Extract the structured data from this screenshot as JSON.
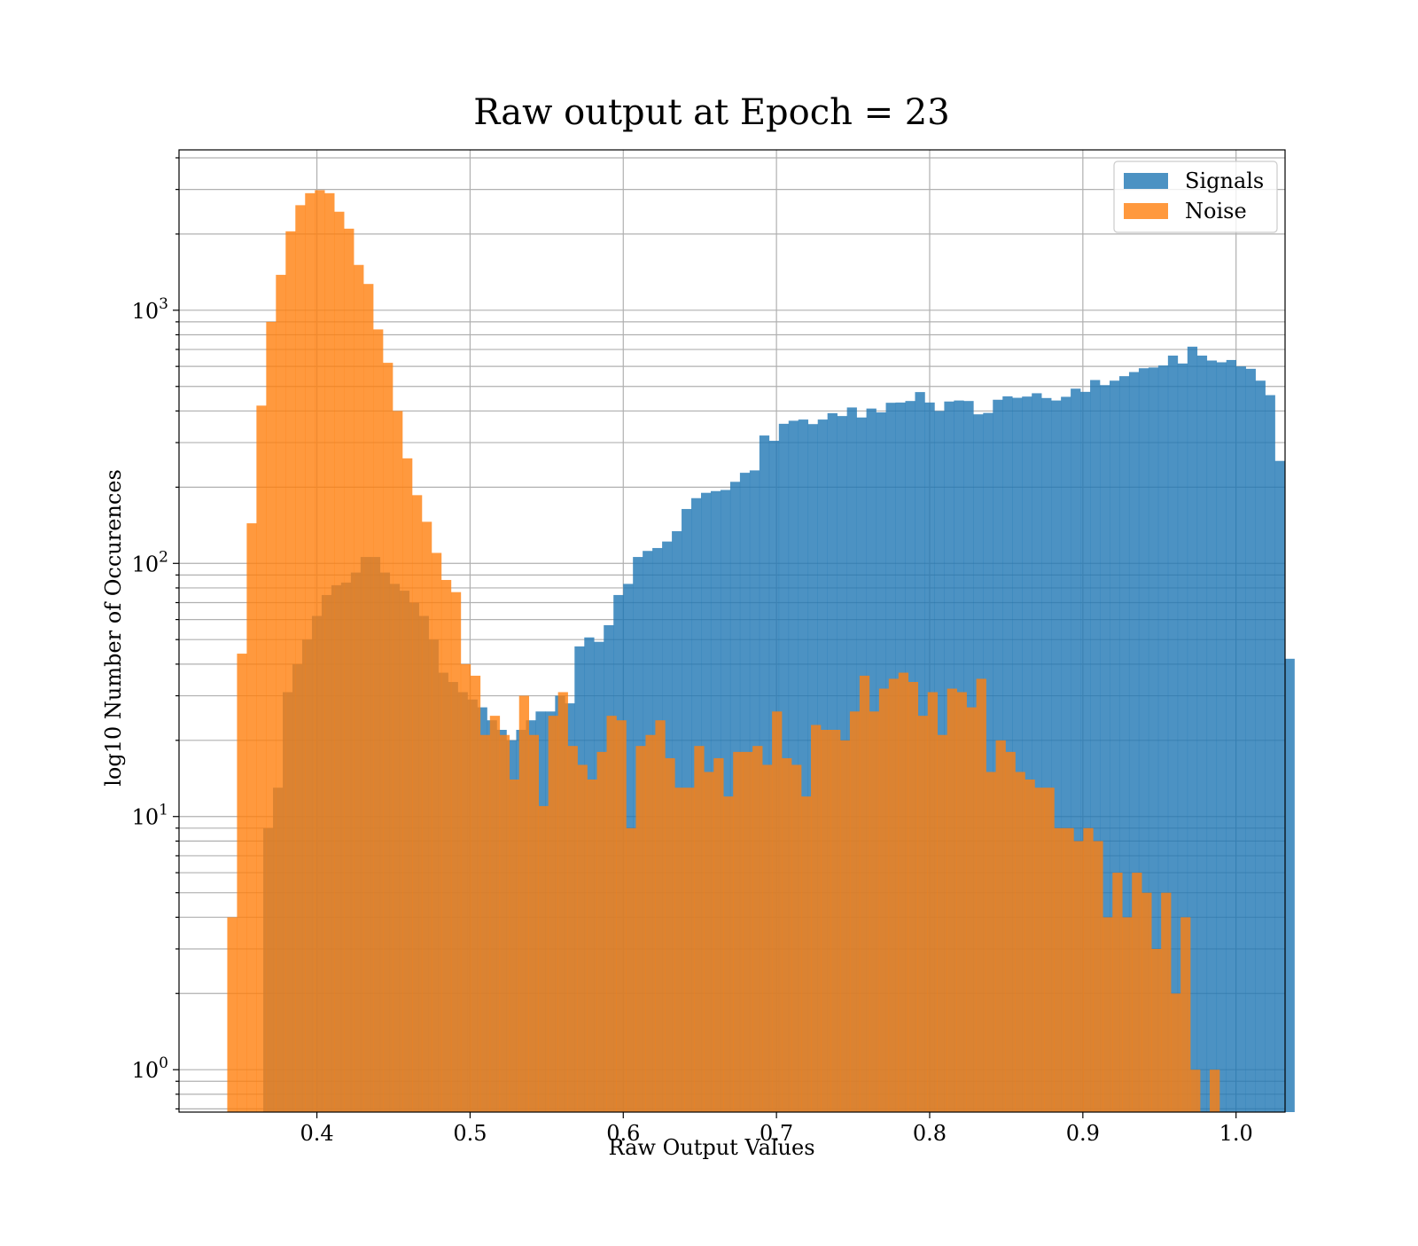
{
  "chart_data": {
    "type": "bar",
    "title": "Raw output at Epoch = 23",
    "xlabel": "Raw Output Values",
    "ylabel": "log10 Number of Occurences",
    "yscale": "log",
    "xlim": [
      0.31,
      1.032
    ],
    "ylim": [
      0.68,
      4300
    ],
    "grid": true,
    "legend_position": "top-right",
    "x_ticks": [
      0.4,
      0.5,
      0.6,
      0.7,
      0.8,
      0.9,
      1.0
    ],
    "x_tick_labels": [
      "0.4",
      "0.5",
      "0.6",
      "0.7",
      "0.8",
      "0.9",
      "1.0"
    ],
    "y_ticks": [
      {
        "base": "10",
        "exp": "0",
        "value": 1
      },
      {
        "base": "10",
        "exp": "1",
        "value": 10
      },
      {
        "base": "10",
        "exp": "2",
        "value": 100
      },
      {
        "base": "10",
        "exp": "3",
        "value": 1000
      }
    ],
    "series": [
      {
        "name": "Signals",
        "color": "#1f77b4",
        "opacity": 0.8,
        "bin_start": 0.365,
        "bin_width": 0.00635,
        "values": [
          9,
          13,
          31,
          40,
          50,
          62,
          75,
          82,
          84,
          92,
          106,
          106,
          92,
          83,
          78,
          70,
          62,
          50,
          37,
          34,
          31,
          29,
          27,
          24,
          22,
          20,
          22,
          24,
          26,
          26,
          30,
          28,
          47,
          51,
          49,
          57,
          75,
          83,
          106,
          112,
          115,
          122,
          134,
          164,
          181,
          190,
          193,
          195,
          210,
          228,
          233,
          320,
          305,
          356,
          366,
          370,
          355,
          370,
          392,
          382,
          413,
          377,
          409,
          395,
          431,
          432,
          438,
          475,
          432,
          400,
          436,
          440,
          438,
          388,
          393,
          443,
          457,
          451,
          456,
          470,
          450,
          440,
          455,
          490,
          476,
          530,
          506,
          527,
          549,
          570,
          590,
          594,
          605,
          662,
          616,
          718,
          662,
          633,
          623,
          636,
          600,
          587,
          527,
          462,
          254,
          42
        ]
      },
      {
        "name": "Noise",
        "color": "#ff7f0e",
        "opacity": 0.8,
        "bin_start": 0.3415,
        "bin_width": 0.00635,
        "values": [
          4,
          44,
          144,
          420,
          900,
          1380,
          2050,
          2600,
          2900,
          2980,
          2900,
          2450,
          2100,
          1510,
          1270,
          840,
          620,
          400,
          260,
          186,
          146,
          110,
          86,
          77,
          40,
          36,
          21,
          25,
          21,
          14,
          30,
          21,
          11,
          25,
          31,
          19,
          16,
          14,
          18,
          25,
          24,
          9,
          19,
          21,
          24,
          17,
          13,
          13,
          19,
          15,
          17,
          12,
          18,
          18,
          19,
          16,
          26,
          17,
          16,
          12,
          23,
          22,
          22,
          20,
          26,
          36,
          26,
          32,
          35,
          37,
          34,
          25,
          31,
          21,
          32,
          31,
          27,
          35,
          15,
          20,
          18,
          15,
          14,
          13,
          13,
          9,
          9,
          8,
          9,
          8,
          4,
          6,
          4,
          6,
          5,
          3,
          5,
          2,
          4,
          1,
          0,
          1
        ]
      }
    ]
  }
}
